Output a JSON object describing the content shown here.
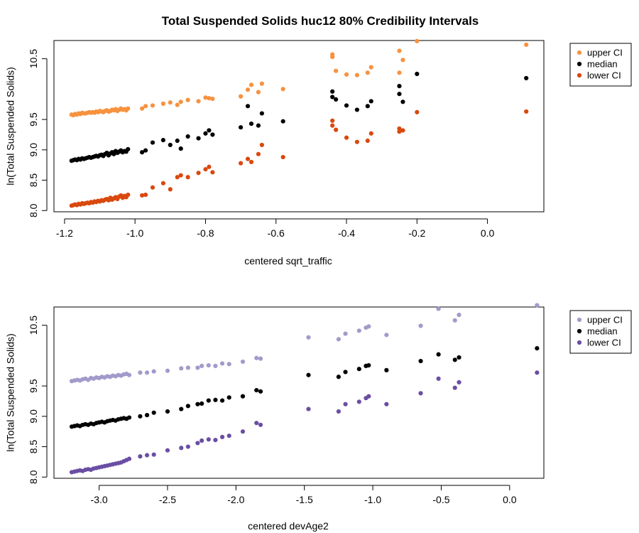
{
  "figure": {
    "title": "Total Suspended Solids huc12 80% Credibility Intervals"
  },
  "colors": {
    "panel1": {
      "upper": "#F7923F",
      "median": "#000000",
      "lower": "#D9490E"
    },
    "panel2": {
      "upper": "#A39ACB",
      "median": "#000000",
      "lower": "#6A4EA3"
    }
  },
  "chart_data": [
    {
      "type": "scatter",
      "title": "Total Suspended Solids huc12 80% Credibility Intervals",
      "xlabel": "centered sqrt_traffic",
      "ylabel": "ln(Total Suspended Solids)",
      "xlim": [
        -1.23,
        0.16
      ],
      "ylim": [
        7.98,
        10.8
      ],
      "xticks": [
        -1.2,
        -1.0,
        -0.8,
        -0.6,
        -0.4,
        -0.2,
        0.0
      ],
      "xtick_labels": [
        "-1.2",
        "-1.0",
        "-0.8",
        "-0.6",
        "-0.4",
        "-0.2",
        "0.0"
      ],
      "yticks": [
        8.0,
        8.5,
        9.0,
        9.5,
        10.5
      ],
      "ytick_labels": [
        "8.0",
        "8.5",
        "9.0",
        "9.5",
        "10.5"
      ],
      "legend_position": "top-right outside",
      "series": [
        {
          "name": "upper CI",
          "color_key": "upper",
          "x": [
            -1.18,
            -1.175,
            -1.17,
            -1.165,
            -1.16,
            -1.155,
            -1.15,
            -1.145,
            -1.14,
            -1.135,
            -1.13,
            -1.125,
            -1.12,
            -1.115,
            -1.11,
            -1.105,
            -1.1,
            -1.095,
            -1.09,
            -1.085,
            -1.08,
            -1.075,
            -1.07,
            -1.065,
            -1.06,
            -1.055,
            -1.05,
            -1.045,
            -1.04,
            -1.035,
            -1.03,
            -1.025,
            -1.02,
            -0.98,
            -0.97,
            -0.95,
            -0.92,
            -0.9,
            -0.88,
            -0.87,
            -0.85,
            -0.82,
            -0.8,
            -0.79,
            -0.78,
            -0.7,
            -0.68,
            -0.67,
            -0.65,
            -0.64,
            -0.58,
            -0.44,
            -0.44,
            -0.43,
            -0.4,
            -0.37,
            -0.34,
            -0.33,
            -0.25,
            -0.25,
            -0.24,
            -0.2,
            0.11
          ],
          "y": [
            9.58,
            9.57,
            9.59,
            9.58,
            9.6,
            9.59,
            9.61,
            9.6,
            9.6,
            9.61,
            9.62,
            9.61,
            9.62,
            9.61,
            9.63,
            9.62,
            9.64,
            9.63,
            9.62,
            9.64,
            9.65,
            9.63,
            9.64,
            9.66,
            9.65,
            9.67,
            9.64,
            9.66,
            9.68,
            9.66,
            9.67,
            9.65,
            9.68,
            9.68,
            9.72,
            9.73,
            9.76,
            9.78,
            9.74,
            9.79,
            9.82,
            9.8,
            9.86,
            9.85,
            9.84,
            9.88,
            9.99,
            10.07,
            9.95,
            10.09,
            10.0,
            10.53,
            10.57,
            10.3,
            10.24,
            10.23,
            10.27,
            10.36,
            10.27,
            10.63,
            10.48,
            10.79,
            10.73
          ]
        },
        {
          "name": "median",
          "color_key": "median",
          "x": [
            -1.18,
            -1.175,
            -1.17,
            -1.165,
            -1.16,
            -1.155,
            -1.15,
            -1.145,
            -1.14,
            -1.135,
            -1.13,
            -1.125,
            -1.12,
            -1.115,
            -1.11,
            -1.105,
            -1.1,
            -1.095,
            -1.09,
            -1.085,
            -1.08,
            -1.075,
            -1.07,
            -1.065,
            -1.06,
            -1.055,
            -1.05,
            -1.045,
            -1.04,
            -1.035,
            -1.03,
            -1.025,
            -1.02,
            -0.98,
            -0.97,
            -0.95,
            -0.92,
            -0.9,
            -0.88,
            -0.87,
            -0.85,
            -0.82,
            -0.8,
            -0.79,
            -0.78,
            -0.7,
            -0.68,
            -0.67,
            -0.65,
            -0.64,
            -0.58,
            -0.44,
            -0.44,
            -0.43,
            -0.4,
            -0.37,
            -0.34,
            -0.33,
            -0.25,
            -0.25,
            -0.24,
            -0.2,
            0.11
          ],
          "y": [
            8.82,
            8.83,
            8.84,
            8.83,
            8.85,
            8.84,
            8.86,
            8.85,
            8.86,
            8.87,
            8.88,
            8.87,
            8.88,
            8.89,
            8.9,
            8.89,
            8.91,
            8.92,
            8.9,
            8.93,
            8.95,
            8.91,
            8.94,
            8.96,
            8.93,
            8.98,
            8.95,
            8.97,
            8.99,
            8.96,
            8.98,
            8.97,
            9.01,
            8.96,
            8.99,
            9.12,
            9.16,
            9.08,
            9.15,
            9.02,
            9.22,
            9.19,
            9.27,
            9.32,
            9.25,
            9.37,
            9.72,
            9.43,
            9.4,
            9.6,
            9.47,
            9.87,
            9.96,
            9.83,
            9.73,
            9.66,
            9.72,
            9.8,
            9.92,
            10.05,
            9.79,
            10.25,
            10.18
          ]
        },
        {
          "name": "lower CI",
          "color_key": "lower",
          "x": [
            -1.18,
            -1.175,
            -1.17,
            -1.165,
            -1.16,
            -1.155,
            -1.15,
            -1.145,
            -1.14,
            -1.135,
            -1.13,
            -1.125,
            -1.12,
            -1.115,
            -1.11,
            -1.105,
            -1.1,
            -1.095,
            -1.09,
            -1.085,
            -1.08,
            -1.075,
            -1.07,
            -1.065,
            -1.06,
            -1.055,
            -1.05,
            -1.045,
            -1.04,
            -1.035,
            -1.03,
            -1.025,
            -1.02,
            -0.98,
            -0.97,
            -0.95,
            -0.92,
            -0.9,
            -0.88,
            -0.87,
            -0.85,
            -0.82,
            -0.8,
            -0.79,
            -0.78,
            -0.7,
            -0.68,
            -0.67,
            -0.65,
            -0.64,
            -0.58,
            -0.44,
            -0.44,
            -0.43,
            -0.4,
            -0.37,
            -0.34,
            -0.33,
            -0.25,
            -0.25,
            -0.24,
            -0.2,
            0.11
          ],
          "y": [
            8.08,
            8.09,
            8.1,
            8.09,
            8.11,
            8.1,
            8.12,
            8.11,
            8.12,
            8.13,
            8.12,
            8.14,
            8.13,
            8.15,
            8.14,
            8.16,
            8.15,
            8.17,
            8.16,
            8.18,
            8.19,
            8.17,
            8.21,
            8.18,
            8.2,
            8.22,
            8.19,
            8.23,
            8.25,
            8.21,
            8.24,
            8.22,
            8.26,
            8.25,
            8.26,
            8.38,
            8.45,
            8.35,
            8.55,
            8.58,
            8.55,
            8.62,
            8.68,
            8.72,
            8.63,
            8.78,
            8.85,
            8.8,
            8.93,
            9.08,
            8.88,
            9.4,
            9.48,
            9.33,
            9.2,
            9.13,
            9.15,
            9.27,
            9.3,
            9.35,
            9.32,
            9.62,
            9.63
          ]
        }
      ]
    },
    {
      "type": "scatter",
      "title": "",
      "xlabel": "centered devAge2",
      "ylabel": "ln(Total Suspended Solids)",
      "xlim": [
        -3.33,
        0.25
      ],
      "ylim": [
        7.98,
        10.8
      ],
      "xticks": [
        -3.0,
        -2.5,
        -2.0,
        -1.5,
        -1.0,
        -0.5,
        0.0
      ],
      "xtick_labels": [
        "-3.0",
        "-2.5",
        "-2.0",
        "-1.5",
        "-1.0",
        "-0.5",
        "0.0"
      ],
      "yticks": [
        8.0,
        8.5,
        9.0,
        9.5,
        10.5
      ],
      "ytick_labels": [
        "8.0",
        "8.5",
        "9.0",
        "9.5",
        "10.5"
      ],
      "legend_position": "top-right outside",
      "series": [
        {
          "name": "upper CI",
          "color_key": "upper",
          "x": [
            -3.2,
            -3.18,
            -3.16,
            -3.14,
            -3.12,
            -3.1,
            -3.08,
            -3.06,
            -3.04,
            -3.02,
            -3.0,
            -2.98,
            -2.96,
            -2.94,
            -2.92,
            -2.9,
            -2.88,
            -2.86,
            -2.84,
            -2.82,
            -2.8,
            -2.78,
            -2.7,
            -2.65,
            -2.6,
            -2.5,
            -2.4,
            -2.35,
            -2.28,
            -2.25,
            -2.2,
            -2.15,
            -2.1,
            -2.05,
            -1.95,
            -1.85,
            -1.82,
            -1.47,
            -1.25,
            -1.2,
            -1.1,
            -1.05,
            -1.03,
            -0.9,
            -0.65,
            -0.52,
            -0.4,
            -0.37,
            0.2
          ],
          "y": [
            9.58,
            9.59,
            9.6,
            9.59,
            9.61,
            9.62,
            9.6,
            9.63,
            9.62,
            9.64,
            9.63,
            9.65,
            9.64,
            9.66,
            9.65,
            9.67,
            9.66,
            9.68,
            9.67,
            9.69,
            9.7,
            9.68,
            9.72,
            9.72,
            9.74,
            9.75,
            9.79,
            9.8,
            9.8,
            9.83,
            9.84,
            9.83,
            9.87,
            9.86,
            9.9,
            9.96,
            9.95,
            10.3,
            10.27,
            10.36,
            10.41,
            10.46,
            10.48,
            10.34,
            10.49,
            10.77,
            10.58,
            10.67,
            10.83
          ]
        },
        {
          "name": "median",
          "color_key": "median",
          "x": [
            -3.2,
            -3.18,
            -3.16,
            -3.14,
            -3.12,
            -3.1,
            -3.08,
            -3.06,
            -3.04,
            -3.02,
            -3.0,
            -2.98,
            -2.96,
            -2.94,
            -2.92,
            -2.9,
            -2.88,
            -2.86,
            -2.84,
            -2.82,
            -2.8,
            -2.78,
            -2.7,
            -2.65,
            -2.6,
            -2.5,
            -2.4,
            -2.35,
            -2.28,
            -2.25,
            -2.2,
            -2.15,
            -2.1,
            -2.05,
            -1.95,
            -1.85,
            -1.82,
            -1.47,
            -1.25,
            -1.2,
            -1.1,
            -1.05,
            -1.03,
            -0.9,
            -0.65,
            -0.52,
            -0.4,
            -0.37,
            0.2
          ],
          "y": [
            8.83,
            8.84,
            8.85,
            8.84,
            8.86,
            8.87,
            8.86,
            8.88,
            8.87,
            8.89,
            8.9,
            8.91,
            8.9,
            8.92,
            8.93,
            8.94,
            8.93,
            8.95,
            8.96,
            8.97,
            8.96,
            8.98,
            9.0,
            9.02,
            9.06,
            9.08,
            9.12,
            9.17,
            9.2,
            9.21,
            9.26,
            9.27,
            9.26,
            9.31,
            9.33,
            9.43,
            9.41,
            9.68,
            9.65,
            9.73,
            9.78,
            9.83,
            9.84,
            9.76,
            9.91,
            10.02,
            9.93,
            9.97,
            10.12
          ]
        },
        {
          "name": "lower CI",
          "color_key": "lower",
          "x": [
            -3.2,
            -3.18,
            -3.16,
            -3.14,
            -3.12,
            -3.1,
            -3.08,
            -3.06,
            -3.04,
            -3.02,
            -3.0,
            -2.98,
            -2.96,
            -2.94,
            -2.92,
            -2.9,
            -2.88,
            -2.86,
            -2.84,
            -2.82,
            -2.8,
            -2.78,
            -2.7,
            -2.65,
            -2.6,
            -2.5,
            -2.4,
            -2.35,
            -2.28,
            -2.25,
            -2.2,
            -2.15,
            -2.1,
            -2.05,
            -1.95,
            -1.85,
            -1.82,
            -1.47,
            -1.25,
            -1.2,
            -1.1,
            -1.05,
            -1.03,
            -0.9,
            -0.65,
            -0.52,
            -0.4,
            -0.37,
            0.2
          ],
          "y": [
            8.08,
            8.09,
            8.1,
            8.11,
            8.1,
            8.12,
            8.13,
            8.12,
            8.14,
            8.15,
            8.16,
            8.17,
            8.18,
            8.19,
            8.2,
            8.21,
            8.22,
            8.23,
            8.24,
            8.26,
            8.28,
            8.3,
            8.34,
            8.36,
            8.37,
            8.44,
            8.48,
            8.5,
            8.56,
            8.6,
            8.62,
            8.61,
            8.66,
            8.68,
            8.75,
            8.89,
            8.86,
            9.12,
            9.08,
            9.2,
            9.24,
            9.3,
            9.33,
            9.2,
            9.38,
            9.62,
            9.47,
            9.56,
            9.72
          ]
        }
      ]
    }
  ]
}
